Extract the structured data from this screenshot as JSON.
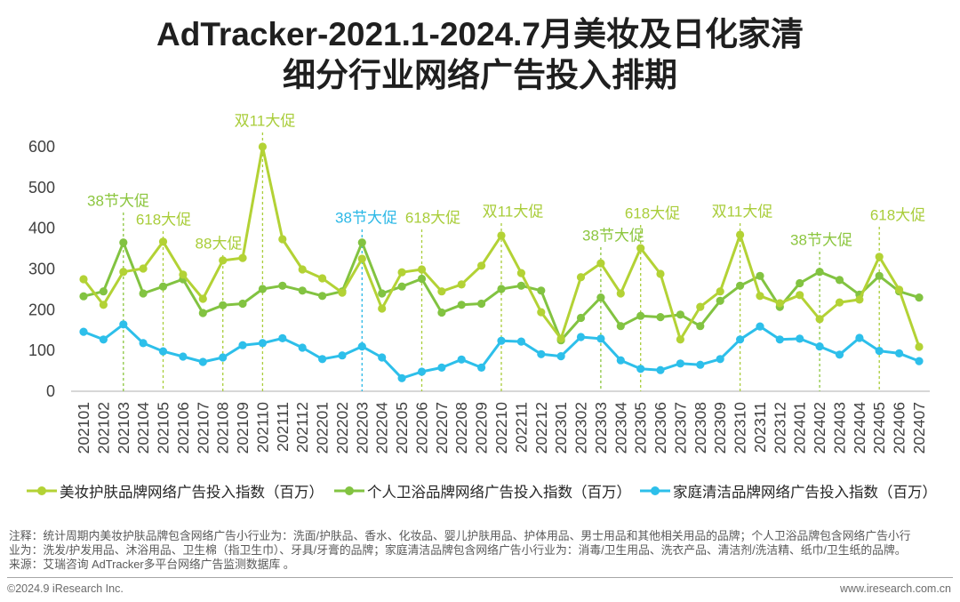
{
  "chart_data": {
    "type": "line",
    "title": [
      "AdTracker-2021.1-2024.7月美妆及日化家清",
      "细分行业网络广告投入排期"
    ],
    "xlabel": "",
    "ylabel": "",
    "ylim": [
      0,
      600
    ],
    "yticks": [
      0,
      100,
      200,
      300,
      400,
      500,
      600
    ],
    "grid": false,
    "legend": "bottom",
    "categories": [
      "202101",
      "202102",
      "202103",
      "202104",
      "202105",
      "202106",
      "202107",
      "202108",
      "202109",
      "202110",
      "202111",
      "202112",
      "202201",
      "202202",
      "202203",
      "202204",
      "202205",
      "202206",
      "202207",
      "202208",
      "202209",
      "202210",
      "202211",
      "202212",
      "202301",
      "202302",
      "202303",
      "202304",
      "202305",
      "202306",
      "202307",
      "202308",
      "202309",
      "202310",
      "202311",
      "202312",
      "202401",
      "202402",
      "202403",
      "202404",
      "202405",
      "202406",
      "202407"
    ],
    "series": [
      {
        "name": "美妆护肤品牌网络广告投入指数（百万）",
        "color": "#b3d235",
        "values": [
          275,
          212,
          293,
          301,
          367,
          286,
          227,
          321,
          327,
          600,
          373,
          299,
          277,
          242,
          325,
          203,
          292,
          299,
          245,
          262,
          308,
          382,
          290,
          194,
          129,
          280,
          314,
          240,
          351,
          288,
          127,
          207,
          245,
          384,
          234,
          216,
          236,
          177,
          218,
          225,
          330,
          249,
          109
        ]
      },
      {
        "name": "个人卫浴品牌网络广告投入指数（百万）",
        "color": "#82c341",
        "values": [
          233,
          245,
          365,
          240,
          257,
          275,
          192,
          211,
          215,
          251,
          259,
          247,
          234,
          245,
          365,
          240,
          257,
          276,
          193,
          212,
          215,
          251,
          259,
          247,
          125,
          180,
          230,
          160,
          185,
          182,
          188,
          160,
          222,
          259,
          283,
          207,
          265,
          293,
          273,
          237,
          283,
          245,
          230
        ]
      },
      {
        "name": "家庭清洁品牌网络广告投入指数（百万）",
        "color": "#2dbfea",
        "values": [
          146,
          127,
          164,
          118,
          98,
          85,
          72,
          83,
          113,
          118,
          130,
          107,
          79,
          88,
          110,
          83,
          32,
          48,
          58,
          78,
          58,
          124,
          122,
          91,
          86,
          133,
          129,
          76,
          55,
          52,
          68,
          65,
          79,
          127,
          159,
          127,
          129,
          110,
          90,
          131,
          99,
          93,
          74
        ]
      }
    ],
    "annotations": [
      {
        "text": "38节大促",
        "x": "202103",
        "color": "#8cc63f"
      },
      {
        "text": "618大促",
        "x": "202105",
        "color": "#a9cd3a"
      },
      {
        "text": "88大促",
        "x": "202108",
        "color": "#a9cd3a"
      },
      {
        "text": "双11大促",
        "x": "202110",
        "color": "#a9cd3a"
      },
      {
        "text": "38节大促",
        "x": "202203",
        "color": "#2cb8e6"
      },
      {
        "text": "618大促",
        "x": "202206",
        "color": "#a9cd3a"
      },
      {
        "text": "双11大促",
        "x": "202210",
        "color": "#a9cd3a"
      },
      {
        "text": "38节大促",
        "x": "202303",
        "color": "#8cc63f"
      },
      {
        "text": "618大促",
        "x": "202305",
        "color": "#a9cd3a"
      },
      {
        "text": "双11大促",
        "x": "202310",
        "color": "#a9cd3a"
      },
      {
        "text": "38节大促",
        "x": "202402",
        "color": "#8cc63f"
      },
      {
        "text": "618大促",
        "x": "202405",
        "color": "#a9cd3a"
      }
    ]
  },
  "notes": {
    "lines": [
      "注释：统计周期内美妆护肤品牌包含网络广告小行业为：洗面/护肤品、香水、化妆品、婴儿护肤用品、护体用品、男士用品和其他相关用品的品牌；个人卫浴品牌包含网络广告小行",
      "业为：洗发/护发用品、沐浴用品、卫生棉（指卫生巾）、牙具/牙膏的品牌；家庭清洁品牌包含网络广告小行业为：消毒/卫生用品、洗衣产品、清洁剂/洗洁精、纸巾/卫生纸的品牌。",
      "来源：艾瑞咨询 AdTracker多平台网络广告监测数据库 。"
    ]
  },
  "footer": {
    "copyright": "©2024.9 iResearch Inc.",
    "website": "www.iresearch.com.cn"
  }
}
